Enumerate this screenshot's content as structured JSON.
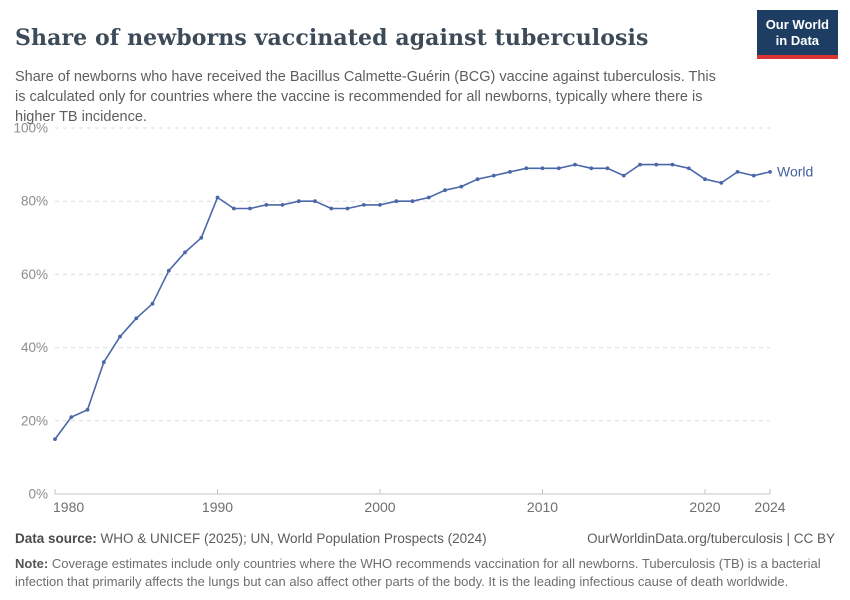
{
  "header": {
    "title": "Share of newborns vaccinated against tuberculosis",
    "subtitle": "Share of newborns who have received the Bacillus Calmette-Guérin (BCG) vaccine against tuberculosis. This is calculated only for countries where the vaccine is recommended for all newborns, typically where there is higher TB incidence.",
    "logo": {
      "line1": "Our World",
      "line2": "in Data",
      "bg_color": "#1d3d63",
      "accent_color": "#dc3434"
    }
  },
  "chart_data": {
    "type": "line",
    "title": "Share of newborns vaccinated against tuberculosis",
    "xlabel": "",
    "ylabel": "",
    "xlim": [
      1980,
      2024
    ],
    "ylim": [
      0,
      100
    ],
    "grid": "horizontal-dashed",
    "legend_position": "end-of-line-label",
    "x_ticks": [
      1980,
      1990,
      2000,
      2010,
      2020,
      2024
    ],
    "y_ticks": [
      "0%",
      "20%",
      "40%",
      "60%",
      "80%",
      "100%"
    ],
    "series": [
      {
        "name": "World",
        "color": "#4a68a8",
        "label_color": "#41609e",
        "x": [
          1980,
          1981,
          1982,
          1983,
          1984,
          1985,
          1986,
          1987,
          1988,
          1989,
          1990,
          1991,
          1992,
          1993,
          1994,
          1995,
          1996,
          1997,
          1998,
          1999,
          2000,
          2001,
          2002,
          2003,
          2004,
          2005,
          2006,
          2007,
          2008,
          2009,
          2010,
          2011,
          2012,
          2013,
          2014,
          2015,
          2016,
          2017,
          2018,
          2019,
          2020,
          2021,
          2022,
          2023,
          2024
        ],
        "values": [
          15,
          21,
          23,
          36,
          43,
          48,
          52,
          61,
          66,
          70,
          81,
          78,
          78,
          79,
          79,
          80,
          80,
          78,
          78,
          79,
          79,
          80,
          80,
          81,
          83,
          84,
          86,
          87,
          88,
          89,
          89,
          89,
          90,
          89,
          89,
          87,
          90,
          90,
          90,
          89,
          86,
          85,
          88,
          87,
          88
        ]
      }
    ]
  },
  "footer": {
    "datasource_label": "Data source:",
    "datasource_text": " WHO & UNICEF (2025); UN, World Population Prospects (2024)",
    "license_text": "OurWorldinData.org/tuberculosis | CC BY",
    "note_label": "Note:",
    "note_text": " Coverage estimates include only countries where the WHO recommends vaccination for all newborns. Tuberculosis (TB) is a bacterial infection that primarily affects the lungs but can also affect other parts of the body. It is the leading infectious cause of death worldwide."
  }
}
